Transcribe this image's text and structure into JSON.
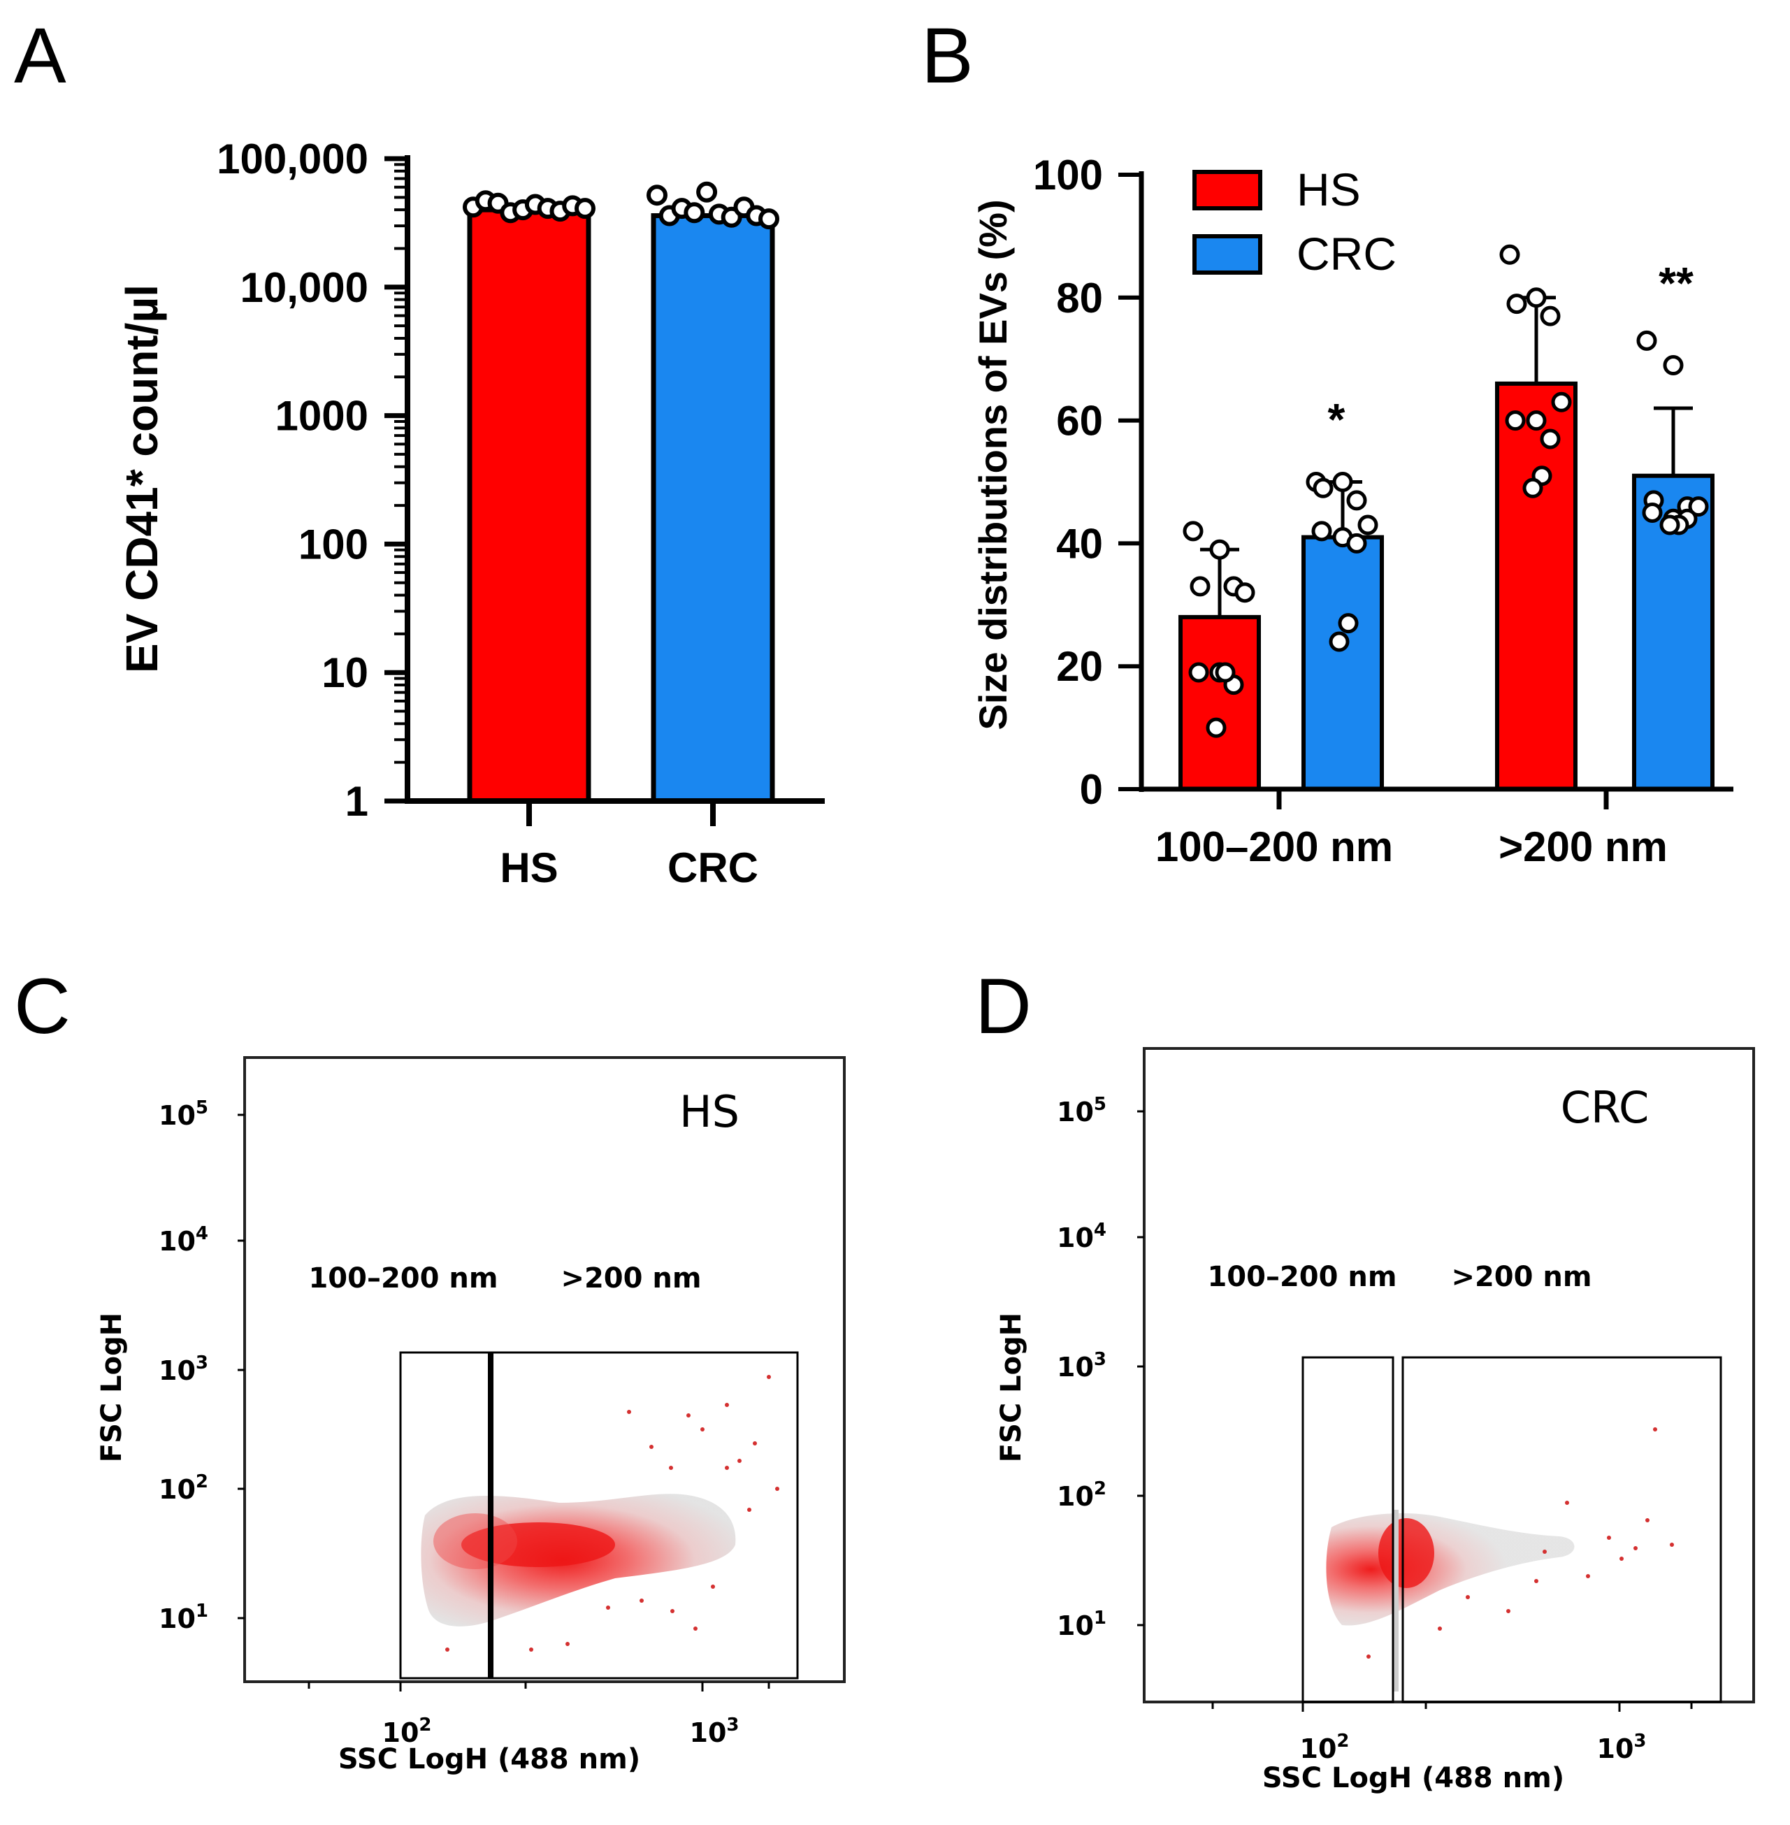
{
  "chart_data": [
    {
      "panel": "A",
      "type": "bar",
      "yscale": "log",
      "ylabel": "EV CD41* count/µl",
      "ylim": [
        1,
        100000
      ],
      "yticks": [
        "100,000",
        "10,000",
        "1000",
        "100",
        "10",
        "1"
      ],
      "categories": [
        "HS",
        "CRC"
      ],
      "values": [
        40000,
        36000
      ],
      "colors": [
        "#ff0000",
        "#1a87f0"
      ],
      "points": [
        [
          42000,
          47000,
          45000,
          38000,
          40000,
          44000,
          41000,
          39000,
          43000,
          41000
        ],
        [
          52000,
          36000,
          41000,
          38000,
          55000,
          37000,
          35000,
          42000,
          36000,
          34000
        ]
      ]
    },
    {
      "panel": "B",
      "type": "bar",
      "ylabel": "Size distributions of EVs (%)",
      "ylim": [
        0,
        100
      ],
      "yticks": [
        "0",
        "20",
        "40",
        "60",
        "80",
        "100"
      ],
      "categories": [
        "100–200 nm",
        ">200 nm"
      ],
      "legend": [
        {
          "name": "HS",
          "color": "#ff0000"
        },
        {
          "name": "CRC",
          "color": "#1a87f0"
        }
      ],
      "series": [
        {
          "name": "HS",
          "values": [
            28,
            66
          ],
          "errors": [
            11,
            14
          ]
        },
        {
          "name": "CRC",
          "values": [
            41,
            51
          ],
          "errors": [
            9,
            11
          ]
        }
      ],
      "points": {
        "HS": [
          [
            42,
            39,
            33,
            33,
            32,
            19,
            19,
            17,
            19,
            10
          ],
          [
            87,
            80,
            79,
            77,
            63,
            60,
            60,
            57,
            51,
            49
          ]
        ],
        "CRC": [
          [
            50,
            50,
            49,
            47,
            43,
            42,
            41,
            40,
            27,
            24
          ],
          [
            73,
            69,
            47,
            46,
            46,
            45,
            44,
            44,
            43,
            43
          ]
        ]
      },
      "annotations": [
        "*",
        "**"
      ]
    },
    {
      "panel": "C",
      "type": "scatter",
      "title": "HS",
      "xlabel": "SSC LogH (488 nm)",
      "ylabel": "FSC LogH",
      "xticks": [
        "10",
        "10"
      ],
      "xtick_exps": [
        "2",
        "3"
      ],
      "yticks": [
        "10",
        "10",
        "10",
        "10",
        "10"
      ],
      "ytick_exps": [
        "5",
        "4",
        "3",
        "2",
        "1"
      ],
      "gates": [
        "100–200 nm",
        ">200 nm"
      ]
    },
    {
      "panel": "D",
      "type": "scatter",
      "title": "CRC",
      "xlabel": "SSC LogH (488 nm)",
      "ylabel": "FSC LogH",
      "xticks": [
        "10",
        "10"
      ],
      "xtick_exps": [
        "2",
        "3"
      ],
      "yticks": [
        "10",
        "10",
        "10",
        "10",
        "10"
      ],
      "ytick_exps": [
        "5",
        "4",
        "3",
        "2",
        "1"
      ],
      "gates": [
        "100–200 nm",
        ">200 nm"
      ]
    }
  ]
}
